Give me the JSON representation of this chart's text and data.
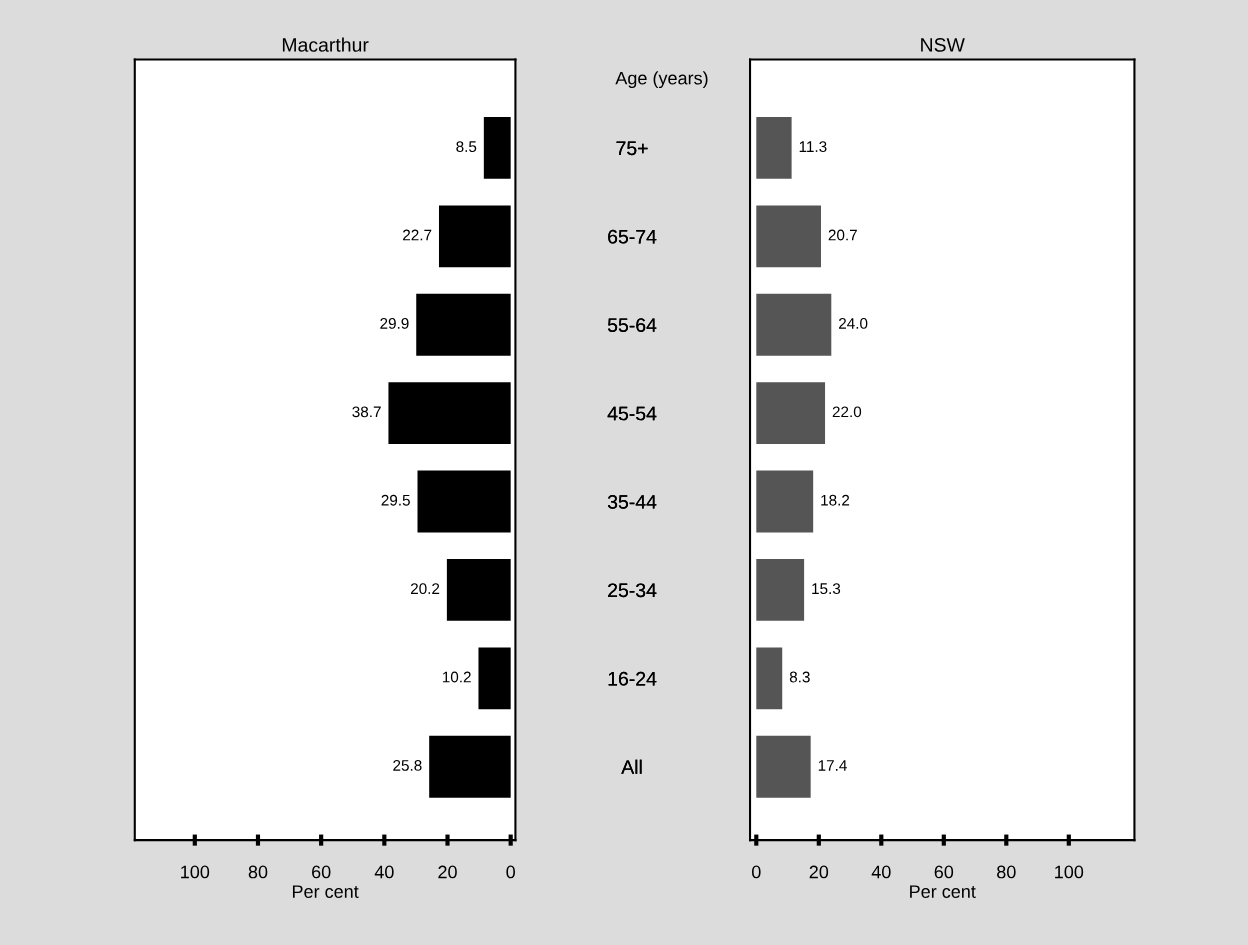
{
  "chart_data": [
    {
      "type": "bar",
      "orientation": "horizontal",
      "title": "Macarthur",
      "ylabel": "Age (years)",
      "xlabel": "Per cent",
      "categories": [
        "75+",
        "65-74",
        "55-64",
        "45-54",
        "35-44",
        "25-34",
        "16-24",
        "All"
      ],
      "values": [
        8.5,
        22.7,
        29.9,
        38.7,
        29.5,
        20.2,
        10.2,
        25.8
      ],
      "value_labels": [
        "8.5",
        "22.7",
        "29.9",
        "38.7",
        "29.5",
        "20.2",
        "10.2",
        "25.8"
      ],
      "color": "#000000",
      "xlim": [
        119,
        -1.5
      ],
      "xticks": [
        100,
        80,
        60,
        40,
        20,
        0
      ],
      "grid": false,
      "legend": false
    },
    {
      "type": "bar",
      "orientation": "horizontal",
      "title": "NSW",
      "xlabel": "Per cent",
      "categories": [
        "75+",
        "65-74",
        "55-64",
        "45-54",
        "35-44",
        "25-34",
        "16-24",
        "All"
      ],
      "values": [
        11.3,
        20.7,
        24.0,
        22.0,
        18.2,
        15.3,
        8.3,
        17.4
      ],
      "value_labels": [
        "11.3",
        "20.7",
        "24.0",
        "22.0",
        "18.2",
        "15.3",
        "8.3",
        "17.4"
      ],
      "color": "#555555",
      "xlim": [
        -2,
        121
      ],
      "xticks": [
        0,
        20,
        40,
        60,
        80,
        100
      ],
      "grid": false,
      "legend": false
    }
  ]
}
